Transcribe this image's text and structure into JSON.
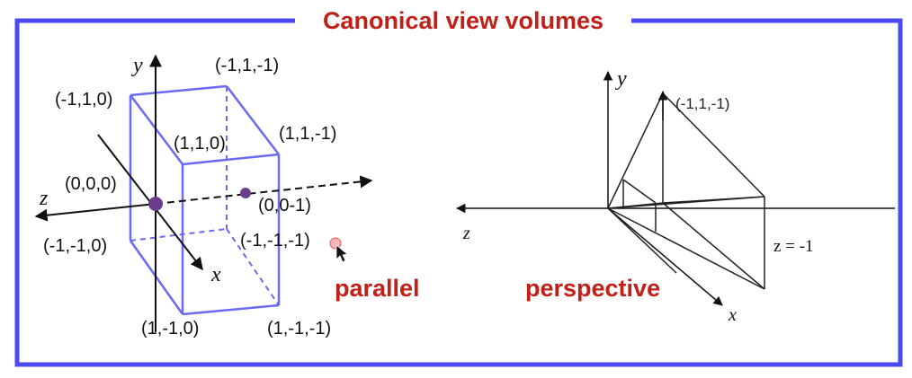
{
  "title": "Canonical view volumes",
  "parallel": {
    "caption": "parallel",
    "axes": {
      "y": "y",
      "z": "z",
      "x": "x"
    },
    "labels": {
      "top_back_left": "(-1,1,-1)",
      "top_front_left": "(-1,1,0)",
      "top_front_right": "(1,1,0)",
      "top_back_right": "(1,1,-1)",
      "origin": "(0,0,0)",
      "center_back": "(0,0-1)",
      "bottom_front_left": "(-1,-1,0)",
      "bottom_back_left": "(-1,-1,-1)",
      "bottom_front_right": "(1,-1,0)",
      "bottom_back_right": "(1,-1,-1)"
    }
  },
  "perspective": {
    "caption": "perspective",
    "axes": {
      "y": "y",
      "z": "z",
      "x": "x"
    },
    "labels": {
      "apex": "(-1,1,-1)",
      "plane": "z = -1"
    }
  },
  "colors": {
    "frame": "#4a4af0",
    "box": "#6a6af5",
    "title": "#c0201a",
    "dot": "#6a3d8f"
  }
}
